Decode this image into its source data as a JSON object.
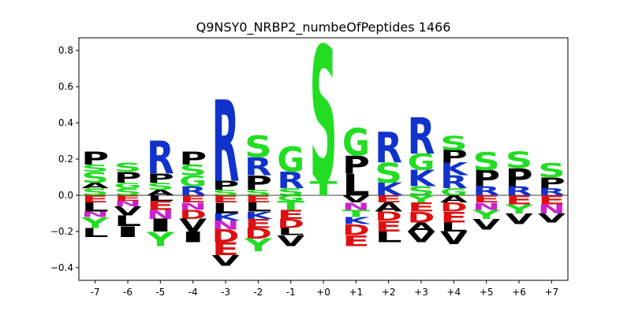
{
  "chart_data": {
    "type": "sequence-logo",
    "title": "Q9NSY0_NRBP2_numbeOfPeptides 1466",
    "xlabel": "",
    "ylabel": "",
    "ylim": [
      -0.47,
      0.87
    ],
    "y_ticks": [
      -0.4,
      -0.2,
      0.0,
      0.2,
      0.4,
      0.6,
      0.8
    ],
    "y_tick_labels": [
      "−0.4",
      "−0.2",
      "0.0",
      "0.2",
      "0.4",
      "0.6",
      "0.8"
    ],
    "positions": [
      "-7",
      "-6",
      "-5",
      "-4",
      "-3",
      "-2",
      "-1",
      "+0",
      "+1",
      "+2",
      "+3",
      "+4",
      "+5",
      "+6",
      "+7"
    ],
    "colors": {
      "S": "#22dd22",
      "T": "#22dd22",
      "G": "#22dd22",
      "Y": "#22dd22",
      "C": "#22dd22",
      "R": "#1133cc",
      "K": "#1133cc",
      "H": "#1133cc",
      "D": "#dd1111",
      "E": "#dd1111",
      "N": "#cc22cc",
      "Q": "#cc22cc",
      "P": "#000000",
      "A": "#000000",
      "V": "#000000",
      "L": "#000000",
      "I": "#000000",
      "M": "#000000",
      "F": "#000000",
      "W": "#000000"
    },
    "stacks": [
      {
        "position": "-7",
        "positive": [
          [
            "S",
            0.04
          ],
          [
            "A",
            0.03
          ],
          [
            "S",
            0.06
          ],
          [
            "S",
            0.04
          ],
          [
            "P",
            0.07
          ]
        ],
        "negative": [
          [
            "E",
            0.04
          ],
          [
            "L",
            0.05
          ],
          [
            "N",
            0.03
          ],
          [
            "Y",
            0.06
          ],
          [
            "L",
            0.05
          ]
        ]
      },
      {
        "position": "-6",
        "positive": [
          [
            "S",
            0.04
          ],
          [
            "G",
            0.03
          ],
          [
            "P",
            0.06
          ],
          [
            "S",
            0.05
          ]
        ],
        "negative": [
          [
            "E",
            0.03
          ],
          [
            "N",
            0.03
          ],
          [
            "V",
            0.05
          ],
          [
            "L",
            0.06
          ],
          [
            "I",
            0.06
          ]
        ]
      },
      {
        "position": "-5",
        "positive": [
          [
            "A",
            0.03
          ],
          [
            "S",
            0.04
          ],
          [
            "P",
            0.05
          ],
          [
            "R",
            0.18
          ]
        ],
        "negative": [
          [
            "L",
            0.03
          ],
          [
            "E",
            0.05
          ],
          [
            "N",
            0.05
          ],
          [
            "I",
            0.07
          ],
          [
            "Y",
            0.08
          ]
        ]
      },
      {
        "position": "-4",
        "positive": [
          [
            "R",
            0.05
          ],
          [
            "G",
            0.06
          ],
          [
            "S",
            0.06
          ],
          [
            "P",
            0.07
          ]
        ],
        "negative": [
          [
            "E",
            0.04
          ],
          [
            "N",
            0.04
          ],
          [
            "D",
            0.05
          ],
          [
            "V",
            0.07
          ],
          [
            "I",
            0.06
          ]
        ]
      },
      {
        "position": "-3",
        "positive": [
          [
            "S",
            0.03
          ],
          [
            "P",
            0.05
          ],
          [
            "R",
            0.45
          ]
        ],
        "negative": [
          [
            "E",
            0.04
          ],
          [
            "L",
            0.06
          ],
          [
            "K",
            0.04
          ],
          [
            "N",
            0.05
          ],
          [
            "D",
            0.07
          ],
          [
            "E",
            0.07
          ],
          [
            "V",
            0.06
          ]
        ]
      },
      {
        "position": "-2",
        "positive": [
          [
            "S",
            0.03
          ],
          [
            "P",
            0.08
          ],
          [
            "R",
            0.1
          ],
          [
            "S",
            0.12
          ]
        ],
        "negative": [
          [
            "E",
            0.04
          ],
          [
            "L",
            0.05
          ],
          [
            "K",
            0.04
          ],
          [
            "E",
            0.05
          ],
          [
            "D",
            0.06
          ],
          [
            "Y",
            0.07
          ]
        ]
      },
      {
        "position": "-1",
        "positive": [
          [
            "S",
            0.04
          ],
          [
            "R",
            0.09
          ],
          [
            "G",
            0.14
          ]
        ],
        "negative": [
          [
            "G",
            0.03
          ],
          [
            "T",
            0.05
          ],
          [
            "E",
            0.05
          ],
          [
            "D",
            0.05
          ],
          [
            "L",
            0.04
          ],
          [
            "V",
            0.06
          ]
        ]
      },
      {
        "position": "+0",
        "positive": [
          [
            "T",
            0.08
          ],
          [
            "S",
            0.75
          ]
        ],
        "negative": []
      },
      {
        "position": "+1",
        "positive": [
          [
            "L",
            0.12
          ],
          [
            "P",
            0.1
          ],
          [
            "G",
            0.15
          ]
        ],
        "negative": [
          [
            "V",
            0.04
          ],
          [
            "N",
            0.04
          ],
          [
            "T",
            0.04
          ],
          [
            "K",
            0.04
          ],
          [
            "D",
            0.06
          ],
          [
            "E",
            0.06
          ]
        ]
      },
      {
        "position": "+2",
        "positive": [
          [
            "K",
            0.07
          ],
          [
            "S",
            0.11
          ],
          [
            "R",
            0.17
          ]
        ],
        "negative": [
          [
            "E",
            0.04
          ],
          [
            "A",
            0.05
          ],
          [
            "D",
            0.05
          ],
          [
            "E",
            0.06
          ],
          [
            "L",
            0.06
          ]
        ]
      },
      {
        "position": "+3",
        "positive": [
          [
            "S",
            0.05
          ],
          [
            "K",
            0.09
          ],
          [
            "G",
            0.09
          ],
          [
            "R",
            0.2
          ]
        ],
        "negative": [
          [
            "Y",
            0.04
          ],
          [
            "E",
            0.05
          ],
          [
            "D",
            0.06
          ],
          [
            "A",
            0.05
          ],
          [
            "V",
            0.06
          ]
        ]
      },
      {
        "position": "+4",
        "positive": [
          [
            "G",
            0.04
          ],
          [
            "R",
            0.07
          ],
          [
            "K",
            0.07
          ],
          [
            "P",
            0.07
          ],
          [
            "S",
            0.08
          ]
        ],
        "negative": [
          [
            "A",
            0.04
          ],
          [
            "D",
            0.05
          ],
          [
            "E",
            0.06
          ],
          [
            "L",
            0.05
          ],
          [
            "V",
            0.07
          ]
        ]
      },
      {
        "position": "+5",
        "positive": [
          [
            "R",
            0.05
          ],
          [
            "P",
            0.09
          ],
          [
            "S",
            0.1
          ]
        ],
        "negative": [
          [
            "E",
            0.04
          ],
          [
            "N",
            0.04
          ],
          [
            "Y",
            0.05
          ],
          [
            "V",
            0.06
          ]
        ]
      },
      {
        "position": "+6",
        "positive": [
          [
            "R",
            0.05
          ],
          [
            "P",
            0.1
          ],
          [
            "S",
            0.09
          ]
        ],
        "negative": [
          [
            "E",
            0.05
          ],
          [
            "Y",
            0.05
          ],
          [
            "V",
            0.06
          ]
        ]
      },
      {
        "position": "+7",
        "positive": [
          [
            "R",
            0.04
          ],
          [
            "P",
            0.06
          ],
          [
            "S",
            0.08
          ]
        ],
        "negative": [
          [
            "E",
            0.05
          ],
          [
            "N",
            0.05
          ],
          [
            "V",
            0.05
          ]
        ]
      }
    ]
  }
}
